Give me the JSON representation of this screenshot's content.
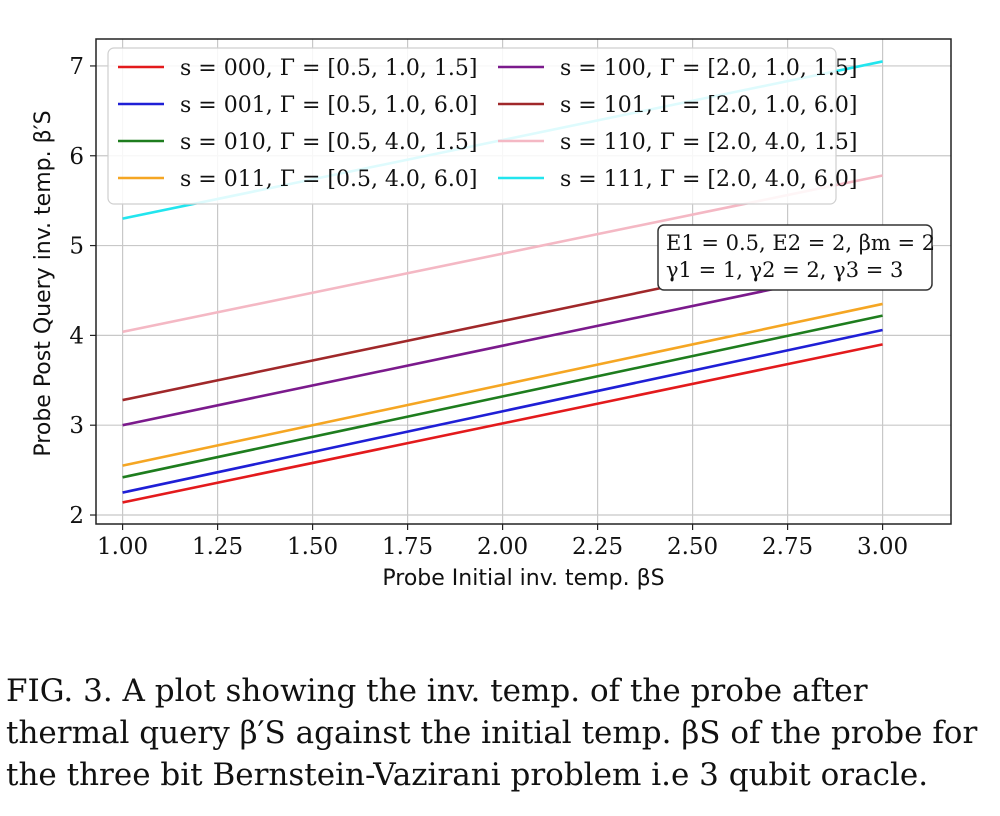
{
  "chart_data": {
    "type": "line",
    "xlabel": "Probe Initial inv. temp. βS",
    "ylabel": "Probe Post Query inv. temp. β′S",
    "xlim": [
      0.93,
      3.18
    ],
    "ylim": [
      1.9,
      7.3
    ],
    "xticks": [
      1.0,
      1.25,
      1.5,
      1.75,
      2.0,
      2.25,
      2.5,
      2.75,
      3.0
    ],
    "xtick_labels": [
      "1.00",
      "1.25",
      "1.50",
      "1.75",
      "2.00",
      "2.25",
      "2.50",
      "2.75",
      "3.00"
    ],
    "yticks": [
      2,
      3,
      4,
      5,
      6,
      7
    ],
    "ytick_labels": [
      "2",
      "3",
      "4",
      "5",
      "6",
      "7"
    ],
    "grid": true,
    "legend_position": "top, two columns",
    "series": [
      {
        "name": "s = 000, Γ = [0.5, 1.0, 1.5]",
        "color": "#e31a1c",
        "x": [
          1.0,
          3.0
        ],
        "y": [
          2.14,
          3.9
        ]
      },
      {
        "name": "s = 001, Γ = [0.5, 1.0, 6.0]",
        "color": "#1f1fd6",
        "x": [
          1.0,
          3.0
        ],
        "y": [
          2.25,
          4.06
        ]
      },
      {
        "name": "s = 010, Γ = [0.5, 4.0, 1.5]",
        "color": "#1e7d1e",
        "x": [
          1.0,
          3.0
        ],
        "y": [
          2.42,
          4.22
        ]
      },
      {
        "name": "s = 011, Γ = [0.5, 4.0, 6.0]",
        "color": "#f5a623",
        "x": [
          1.0,
          3.0
        ],
        "y": [
          2.55,
          4.35
        ]
      },
      {
        "name": "s = 100, Γ = [2.0, 1.0, 1.5]",
        "color": "#7b1a8c",
        "x": [
          1.0,
          3.0
        ],
        "y": [
          3.0,
          4.77
        ]
      },
      {
        "name": "s = 101, Γ = [2.0, 1.0, 6.0]",
        "color": "#a0282a",
        "x": [
          1.0,
          3.0
        ],
        "y": [
          3.28,
          5.04
        ]
      },
      {
        "name": "s = 110, Γ = [2.0, 4.0, 1.5]",
        "color": "#f4b8c4",
        "x": [
          1.0,
          3.0
        ],
        "y": [
          4.04,
          5.78
        ]
      },
      {
        "name": "s = 111, Γ = [2.0, 4.0, 6.0]",
        "color": "#22e5ee",
        "x": [
          1.0,
          3.0
        ],
        "y": [
          5.3,
          7.05
        ]
      }
    ],
    "annotation": [
      "E1 = 0.5, E2 = 2, βm = 2",
      "γ1 = 1, γ2 = 2, γ3 = 3"
    ]
  },
  "caption": "FIG. 3. A plot showing the inv. temp. of the probe after thermal query β′S against the initial temp. βS of the probe for the three bit Bernstein-Vazirani problem i.e 3 qubit oracle."
}
